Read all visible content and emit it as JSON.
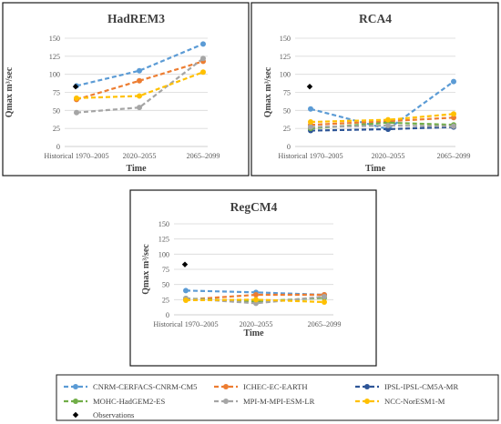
{
  "chart_data": [
    {
      "type": "line",
      "title": "HadREM3",
      "xlabel": "Time",
      "ylabel": "Qmax  m³/sec",
      "categories": [
        "Historical 1970–2005",
        "2020–2055",
        "2065–2099"
      ],
      "ylim": [
        0,
        150
      ],
      "yticks": [
        0,
        25,
        50,
        75,
        100,
        125,
        150
      ],
      "grid": true,
      "series": [
        {
          "name": "CNRM-CERFACS-CNRM-CM5",
          "values": [
            84,
            105,
            142
          ]
        },
        {
          "name": "ICHEC-EC-EARTH",
          "values": [
            65,
            91,
            118
          ]
        },
        {
          "name": "IPSL-IPSL-CM5A-MR",
          "values": [
            null,
            null,
            null
          ]
        },
        {
          "name": "MOHC-HadGEM2-ES",
          "values": [
            null,
            null,
            null
          ]
        },
        {
          "name": "MPI-M-MPI-ESM-LR",
          "values": [
            47,
            54,
            122
          ]
        },
        {
          "name": "NCC-NorESM1-M",
          "values": [
            67,
            70,
            103
          ]
        }
      ],
      "observations": [
        83,
        null,
        null
      ]
    },
    {
      "type": "line",
      "title": "RCA4",
      "xlabel": "Time",
      "ylabel": "Qmax  m³/sec",
      "categories": [
        "Historical 1970–2005",
        "2020–2055",
        "2065–2099"
      ],
      "ylim": [
        0,
        150
      ],
      "yticks": [
        0,
        25,
        50,
        75,
        100,
        125,
        150
      ],
      "grid": true,
      "series": [
        {
          "name": "CNRM-CERFACS-CNRM-CM5",
          "values": [
            52,
            24,
            90
          ]
        },
        {
          "name": "ICHEC-EC-EARTH",
          "values": [
            30,
            35,
            40
          ]
        },
        {
          "name": "IPSL-IPSL-CM5A-MR",
          "values": [
            22,
            24,
            27
          ]
        },
        {
          "name": "MOHC-HadGEM2-ES",
          "values": [
            25,
            33,
            30
          ]
        },
        {
          "name": "MPI-M-MPI-ESM-LR",
          "values": [
            27,
            29,
            28
          ]
        },
        {
          "name": "NCC-NorESM1-M",
          "values": [
            34,
            37,
            45
          ]
        }
      ],
      "observations": [
        83,
        null,
        null
      ]
    },
    {
      "type": "line",
      "title": "RegCM4",
      "xlabel": "Time",
      "ylabel": "Qmax  m³/sec",
      "categories": [
        "Historical 1970–2005",
        "2020–2055",
        "2065–2099"
      ],
      "ylim": [
        0,
        150
      ],
      "yticks": [
        0,
        25,
        50,
        75,
        100,
        125,
        150
      ],
      "grid": true,
      "series": [
        {
          "name": "CNRM-CERFACS-CNRM-CM5",
          "values": [
            40,
            37,
            33
          ]
        },
        {
          "name": "ICHEC-EC-EARTH",
          "values": [
            25,
            33,
            33
          ]
        },
        {
          "name": "IPSL-IPSL-CM5A-MR",
          "values": [
            null,
            null,
            null
          ]
        },
        {
          "name": "MOHC-HadGEM2-ES",
          "values": [
            27,
            22,
            28
          ]
        },
        {
          "name": "MPI-M-MPI-ESM-LR",
          "values": [
            27,
            19,
            30
          ]
        },
        {
          "name": "NCC-NorESM1-M",
          "values": [
            24,
            25,
            21
          ]
        }
      ],
      "observations": [
        83,
        null,
        null
      ]
    }
  ],
  "legend": {
    "placement": "bottom",
    "items": [
      {
        "label": "CNRM-CERFACS-CNRM-CM5",
        "color": "#5b9bd5",
        "marker": "circle"
      },
      {
        "label": "ICHEC-EC-EARTH",
        "color": "#ed7d31",
        "marker": "circle"
      },
      {
        "label": "IPSL-IPSL-CM5A-MR",
        "color": "#2e5597",
        "marker": "circle"
      },
      {
        "label": "MOHC-HadGEM2-ES",
        "color": "#70ad47",
        "marker": "circle"
      },
      {
        "label": "MPI-M-MPI-ESM-LR",
        "color": "#a5a5a5",
        "marker": "circle"
      },
      {
        "label": "NCC-NorESM1-M",
        "color": "#ffc000",
        "marker": "circle"
      },
      {
        "label": "Observations",
        "color": "#000000",
        "marker": "diamond"
      }
    ]
  }
}
